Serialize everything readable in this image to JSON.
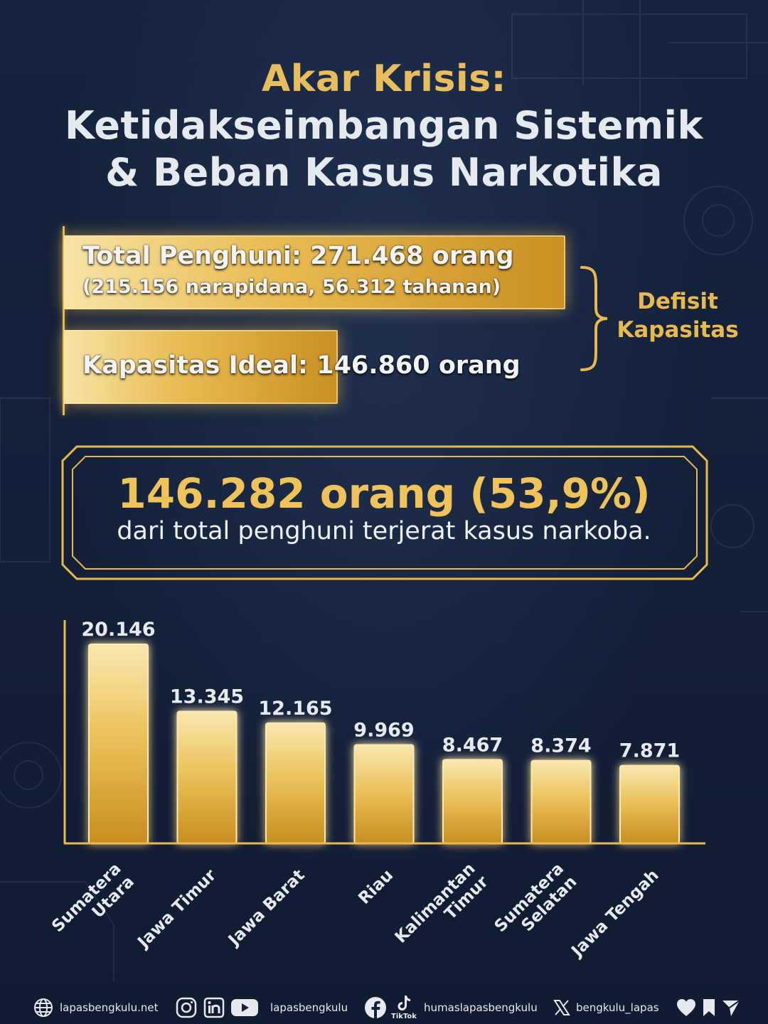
{
  "title": {
    "line1": "Akar Krisis:",
    "line2": "Ketidakseimbangan Sistemik",
    "line3": "& Beban Kasus Narkotika"
  },
  "capacity": {
    "total_label": "Total Penghuni: 271.468 orang",
    "total_detail": "(215.156 narapidana, 56.312 tahanan)",
    "ideal_label": "Kapasitas Ideal: 146.860 orang",
    "total_value": 271468,
    "ideal_value": 146860,
    "deficit_line1": "Defisit",
    "deficit_line2": "Kapasitas"
  },
  "highlight": {
    "headline": "146.282 orang (53,9%)",
    "subtext": "dari total penghuni terjerat kasus narkoba."
  },
  "chart_data": {
    "type": "bar",
    "categories": [
      "Sumatera Utara",
      "Jawa Timur",
      "Jawa Barat",
      "Riau",
      "Kalimantan Timur",
      "Sumatera Selatan",
      "Jawa Tengah"
    ],
    "category_lines": [
      [
        "Sumatera",
        "Utara"
      ],
      [
        "Jawa Timur"
      ],
      [
        "Jawa Barat"
      ],
      [
        "Riau"
      ],
      [
        "Kalimantan",
        "Timur"
      ],
      [
        "Sumatera",
        "Selatan"
      ],
      [
        "Jawa Tengah"
      ]
    ],
    "values": [
      20146,
      13345,
      12165,
      9969,
      8467,
      8374,
      7871
    ],
    "value_labels": [
      "20.146",
      "13.345",
      "12.165",
      "9.969",
      "8.467",
      "8.374",
      "7.871"
    ],
    "ylim": [
      0,
      22000
    ],
    "grid": false,
    "bar_color": "#e9bd55"
  },
  "footer": {
    "website": "lapasbengkulu.net",
    "social_handle": "lapasbengkulu",
    "humas_handle": "humaslapasbengkulu",
    "tiktok_label": "TikTok",
    "x_handle": "bengkulu_lapas"
  },
  "colors": {
    "background": "#15213a",
    "gold": "#e8b94e",
    "text_light": "#e6e9ee"
  }
}
